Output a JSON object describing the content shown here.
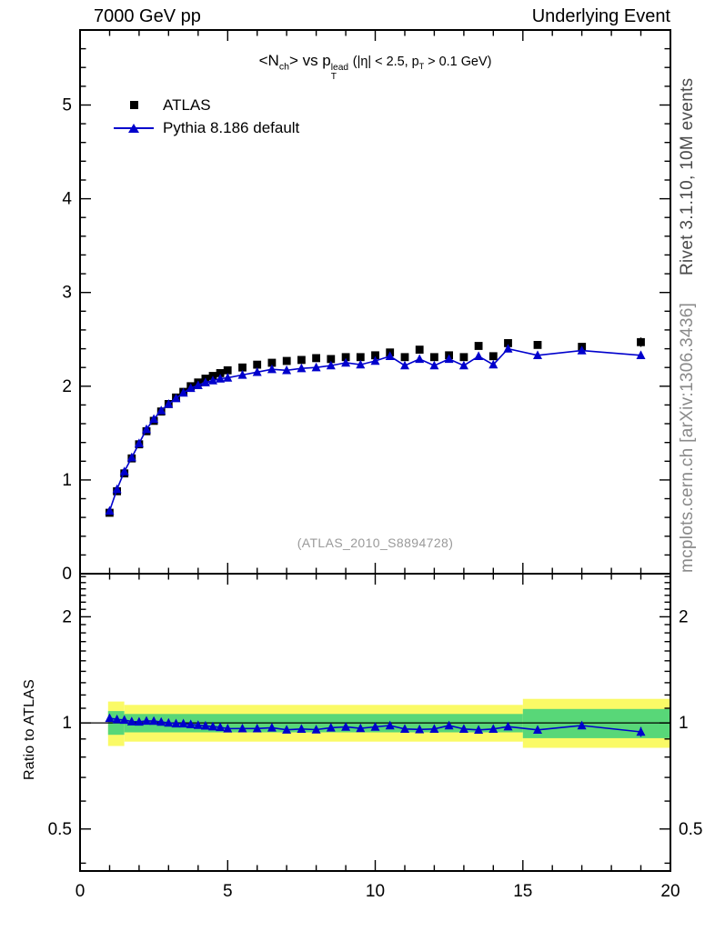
{
  "header": {
    "left": "7000 GeV pp",
    "right": "Underlying Event"
  },
  "side_notes": {
    "top": "Rivet 3.1.10, 10M events",
    "bottom": "mcplots.cern.ch [arXiv:1306.3436]"
  },
  "main": {
    "title_html": "&lt;N<sub>ch</sub>&gt; vs p<span class='stack'><span>lead</span><span>T</span></span> <span class='small'>(|η| &lt; 2.5, p<sub>T</sub> &gt; 0.1 GeV)</span>",
    "watermark": "(ATLAS_2010_S8894728)"
  },
  "legend": [
    {
      "label": "ATLAS",
      "marker": "square",
      "color": "#000000"
    },
    {
      "label": "Pythia 8.186 default",
      "marker": "triangle",
      "color": "#0000cc"
    }
  ],
  "ratio": {
    "ylabel": "Ratio to ATLAS"
  },
  "chart_data": {
    "type": "line",
    "title": "<N_ch> vs p_T^lead (|eta| < 2.5, p_T > 0.1 GeV)",
    "xlabel": "",
    "xlim": [
      0,
      20
    ],
    "x_major_ticks": [
      0,
      5,
      10,
      15,
      20
    ],
    "legend": [
      "ATLAS",
      "Pythia 8.186 default"
    ],
    "main_panel": {
      "ylim": [
        0,
        5.8
      ],
      "y_major_ticks": [
        0,
        1,
        2,
        3,
        4,
        5
      ],
      "series": [
        {
          "name": "ATLAS",
          "marker": "square",
          "color": "#000000",
          "line": false,
          "x": [
            1,
            1.25,
            1.5,
            1.75,
            2,
            2.25,
            2.5,
            2.75,
            3,
            3.25,
            3.5,
            3.75,
            4,
            4.25,
            4.5,
            4.75,
            5,
            5.5,
            6,
            6.5,
            7,
            7.5,
            8,
            8.5,
            9,
            9.5,
            10,
            10.5,
            11,
            11.5,
            12,
            12.5,
            13,
            13.5,
            14,
            14.5,
            15.5,
            17,
            19
          ],
          "y": [
            0.65,
            0.88,
            1.07,
            1.23,
            1.38,
            1.52,
            1.63,
            1.73,
            1.81,
            1.88,
            1.94,
            2.0,
            2.04,
            2.08,
            2.11,
            2.14,
            2.17,
            2.2,
            2.23,
            2.25,
            2.27,
            2.28,
            2.3,
            2.29,
            2.31,
            2.31,
            2.33,
            2.36,
            2.31,
            2.39,
            2.31,
            2.33,
            2.31,
            2.43,
            2.32,
            2.46,
            2.44,
            2.42,
            2.47
          ],
          "yerr": [
            0.01,
            0.01,
            0.01,
            0.01,
            0.01,
            0.01,
            0.01,
            0.01,
            0.01,
            0.01,
            0.01,
            0.01,
            0.01,
            0.01,
            0.01,
            0.01,
            0.01,
            0.01,
            0.01,
            0.01,
            0.01,
            0.01,
            0.01,
            0.01,
            0.01,
            0.01,
            0.02,
            0.02,
            0.02,
            0.02,
            0.02,
            0.02,
            0.02,
            0.03,
            0.03,
            0.03,
            0.03,
            0.04,
            0.05
          ]
        },
        {
          "name": "Pythia 8.186 default",
          "marker": "triangle",
          "color": "#0000cc",
          "line": true,
          "x": [
            1,
            1.25,
            1.5,
            1.75,
            2,
            2.25,
            2.5,
            2.75,
            3,
            3.25,
            3.5,
            3.75,
            4,
            4.25,
            4.5,
            4.75,
            5,
            5.5,
            6,
            6.5,
            7,
            7.5,
            8,
            8.5,
            9,
            9.5,
            10,
            10.5,
            11,
            11.5,
            12,
            12.5,
            13,
            13.5,
            14,
            14.5,
            15.5,
            17,
            19
          ],
          "y": [
            0.67,
            0.9,
            1.09,
            1.24,
            1.39,
            1.54,
            1.65,
            1.74,
            1.81,
            1.87,
            1.93,
            1.98,
            2.01,
            2.04,
            2.06,
            2.08,
            2.09,
            2.12,
            2.15,
            2.18,
            2.17,
            2.19,
            2.2,
            2.22,
            2.25,
            2.23,
            2.27,
            2.32,
            2.22,
            2.29,
            2.22,
            2.29,
            2.22,
            2.32,
            2.23,
            2.4,
            2.33,
            2.38,
            2.33
          ],
          "yerr": [
            0.005,
            0.005,
            0.005,
            0.005,
            0.005,
            0.005,
            0.005,
            0.005,
            0.005,
            0.005,
            0.005,
            0.005,
            0.005,
            0.005,
            0.005,
            0.005,
            0.005,
            0.005,
            0.005,
            0.005,
            0.005,
            0.005,
            0.005,
            0.005,
            0.005,
            0.005,
            0.01,
            0.01,
            0.01,
            0.01,
            0.01,
            0.01,
            0.01,
            0.02,
            0.02,
            0.02,
            0.02,
            0.03,
            0.04
          ]
        }
      ]
    },
    "ratio_panel": {
      "scale": "log",
      "ylim": [
        0.38,
        2.65
      ],
      "y_major_ticks": [
        0.5,
        1,
        2
      ],
      "bands": {
        "yellow": {
          "color": "#fafa66",
          "segments": [
            {
              "x0": 0.95,
              "x1": 1.5,
              "lo": 0.86,
              "hi": 1.15
            },
            {
              "x0": 1.5,
              "x1": 15.0,
              "lo": 0.885,
              "hi": 1.125
            },
            {
              "x0": 15.0,
              "x1": 20.0,
              "lo": 0.85,
              "hi": 1.17
            }
          ]
        },
        "green": {
          "color": "#58d778",
          "segments": [
            {
              "x0": 0.95,
              "x1": 1.5,
              "lo": 0.925,
              "hi": 1.08
            },
            {
              "x0": 1.5,
              "x1": 15.0,
              "lo": 0.94,
              "hi": 1.06
            },
            {
              "x0": 15.0,
              "x1": 20.0,
              "lo": 0.905,
              "hi": 1.095
            }
          ]
        }
      },
      "series": [
        {
          "name": "Pythia 8.186 default / ATLAS",
          "marker": "triangle",
          "color": "#0000cc",
          "x": [
            1,
            1.25,
            1.5,
            1.75,
            2,
            2.25,
            2.5,
            2.75,
            3,
            3.25,
            3.5,
            3.75,
            4,
            4.25,
            4.5,
            4.75,
            5,
            5.5,
            6,
            6.5,
            7,
            7.5,
            8,
            8.5,
            9,
            9.5,
            10,
            10.5,
            11,
            11.5,
            12,
            12.5,
            13,
            13.5,
            14,
            14.5,
            15.5,
            17,
            19
          ],
          "y": [
            1.031,
            1.023,
            1.019,
            1.008,
            1.007,
            1.013,
            1.012,
            1.006,
            1.0,
            0.995,
            0.995,
            0.99,
            0.985,
            0.981,
            0.976,
            0.972,
            0.963,
            0.964,
            0.964,
            0.969,
            0.956,
            0.961,
            0.957,
            0.969,
            0.974,
            0.965,
            0.974,
            0.983,
            0.961,
            0.958,
            0.961,
            0.983,
            0.961,
            0.955,
            0.961,
            0.976,
            0.955,
            0.983,
            0.943
          ],
          "yerr": [
            0.005,
            0.005,
            0.005,
            0.005,
            0.005,
            0.005,
            0.005,
            0.005,
            0.005,
            0.005,
            0.005,
            0.005,
            0.005,
            0.005,
            0.005,
            0.005,
            0.005,
            0.005,
            0.005,
            0.005,
            0.005,
            0.005,
            0.005,
            0.005,
            0.005,
            0.005,
            0.01,
            0.01,
            0.01,
            0.01,
            0.01,
            0.01,
            0.01,
            0.015,
            0.015,
            0.015,
            0.015,
            0.02,
            0.03
          ]
        }
      ]
    }
  }
}
